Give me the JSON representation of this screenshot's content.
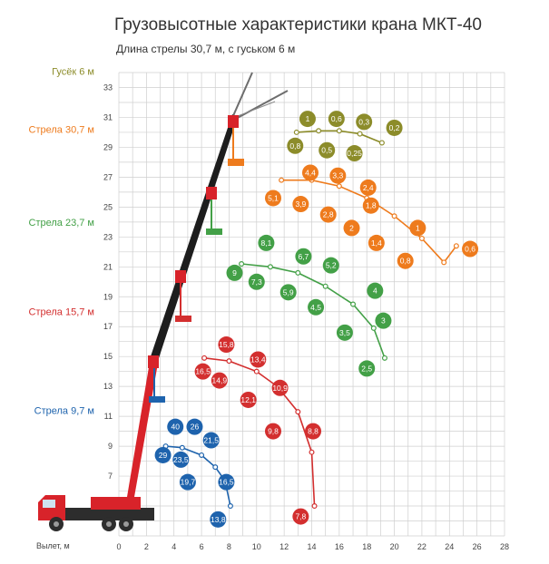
{
  "chart_data": {
    "type": "scatter",
    "title": "Грузовысотные характеристики крана МКТ-40",
    "subtitle": "Длина стрелы 30,7 м, с гуськом 6 м",
    "xlabel": "Вылет, м",
    "xlim": [
      0,
      28
    ],
    "ylim": [
      3,
      34
    ],
    "x_ticks": [
      "0",
      "2",
      "4",
      "6",
      "8",
      "10",
      "12",
      "14",
      "16",
      "18",
      "20",
      "22",
      "24",
      "26",
      "28"
    ],
    "y_ticks": [
      "33",
      "31",
      "29",
      "27",
      "25",
      "23",
      "21",
      "19",
      "17",
      "15",
      "13",
      "11",
      "9",
      "7",
      "5"
    ],
    "grid": true,
    "series": [
      {
        "name": "Гусёк 6 м",
        "color": "#8c8c2a",
        "label_y": 34.1,
        "curve": [
          [
            12.9,
            30.0
          ],
          [
            14.5,
            30.1
          ],
          [
            16.0,
            30.1
          ],
          [
            17.5,
            29.9
          ],
          [
            19.1,
            29.3
          ]
        ],
        "points": [
          {
            "x": 13.7,
            "y": 30.9,
            "label": "1"
          },
          {
            "x": 15.8,
            "y": 30.9,
            "label": "0,6"
          },
          {
            "x": 17.8,
            "y": 30.7,
            "label": "0,3"
          },
          {
            "x": 20.0,
            "y": 30.3,
            "label": "0,2"
          },
          {
            "x": 12.8,
            "y": 29.1,
            "label": "0,8"
          },
          {
            "x": 15.1,
            "y": 28.8,
            "label": "0,5"
          },
          {
            "x": 17.1,
            "y": 28.6,
            "label": "0,25"
          }
        ]
      },
      {
        "name": "Стрела 30,7 м",
        "color": "#ee7b1d",
        "label_y": 30.2,
        "curve": [
          [
            11.8,
            26.8
          ],
          [
            14.0,
            26.8
          ],
          [
            16.0,
            26.4
          ],
          [
            18.0,
            25.6
          ],
          [
            20.0,
            24.4
          ],
          [
            22.0,
            22.9
          ],
          [
            23.6,
            21.3
          ],
          [
            24.5,
            22.4
          ]
        ],
        "points": [
          {
            "x": 13.9,
            "y": 27.3,
            "label": "4,4"
          },
          {
            "x": 15.9,
            "y": 27.1,
            "label": "3,3"
          },
          {
            "x": 18.1,
            "y": 26.3,
            "label": "2,4"
          },
          {
            "x": 11.2,
            "y": 25.6,
            "label": "5,1"
          },
          {
            "x": 13.2,
            "y": 25.2,
            "label": "3,9"
          },
          {
            "x": 15.2,
            "y": 24.5,
            "label": "2,8"
          },
          {
            "x": 18.3,
            "y": 25.1,
            "label": "1,8"
          },
          {
            "x": 16.9,
            "y": 23.6,
            "label": "2"
          },
          {
            "x": 21.7,
            "y": 23.6,
            "label": "1"
          },
          {
            "x": 18.7,
            "y": 22.6,
            "label": "1,4"
          },
          {
            "x": 25.5,
            "y": 22.2,
            "label": "0,6"
          },
          {
            "x": 20.8,
            "y": 21.4,
            "label": "0,8"
          }
        ]
      },
      {
        "name": "Стрела 23,7 м",
        "color": "#43a047",
        "label_y": 24.0,
        "curve": [
          [
            8.9,
            21.2
          ],
          [
            11.0,
            21.0
          ],
          [
            13.0,
            20.6
          ],
          [
            15.0,
            19.7
          ],
          [
            17.0,
            18.5
          ],
          [
            18.5,
            16.9
          ],
          [
            19.3,
            14.9
          ]
        ],
        "points": [
          {
            "x": 10.7,
            "y": 22.6,
            "label": "8,1"
          },
          {
            "x": 13.4,
            "y": 21.7,
            "label": "6,7"
          },
          {
            "x": 15.4,
            "y": 21.1,
            "label": "5,2"
          },
          {
            "x": 8.4,
            "y": 20.6,
            "label": "9"
          },
          {
            "x": 10.0,
            "y": 20.0,
            "label": "7,3"
          },
          {
            "x": 12.3,
            "y": 19.3,
            "label": "5,9"
          },
          {
            "x": 18.6,
            "y": 19.4,
            "label": "4"
          },
          {
            "x": 14.3,
            "y": 18.3,
            "label": "4,5"
          },
          {
            "x": 19.2,
            "y": 17.4,
            "label": "3"
          },
          {
            "x": 16.4,
            "y": 16.6,
            "label": "3,5"
          },
          {
            "x": 18.0,
            "y": 14.2,
            "label": "2,5"
          }
        ]
      },
      {
        "name": "Стрела 15,7 м",
        "color": "#d32f2f",
        "label_y": 18.0,
        "curve": [
          [
            6.2,
            14.9
          ],
          [
            8.0,
            14.7
          ],
          [
            10.0,
            14.0
          ],
          [
            11.5,
            13.0
          ],
          [
            13.0,
            11.3
          ],
          [
            14.0,
            8.6
          ],
          [
            14.2,
            5.0
          ]
        ],
        "points": [
          {
            "x": 7.8,
            "y": 15.8,
            "label": "15,8"
          },
          {
            "x": 6.1,
            "y": 14.0,
            "label": "16,5"
          },
          {
            "x": 10.1,
            "y": 14.8,
            "label": "13,4"
          },
          {
            "x": 7.3,
            "y": 13.4,
            "label": "14,9"
          },
          {
            "x": 11.7,
            "y": 12.9,
            "label": "10,9"
          },
          {
            "x": 9.4,
            "y": 12.1,
            "label": "12,1"
          },
          {
            "x": 11.2,
            "y": 10.0,
            "label": "9,8"
          },
          {
            "x": 14.1,
            "y": 10.0,
            "label": "8,8"
          },
          {
            "x": 13.2,
            "y": 4.3,
            "label": "7,8"
          }
        ]
      },
      {
        "name": "Стрела 9,7 м",
        "color": "#1e63ad",
        "label_y": 11.4,
        "curve": [
          [
            3.4,
            9.0
          ],
          [
            4.6,
            8.9
          ],
          [
            6.0,
            8.4
          ],
          [
            7.0,
            7.6
          ],
          [
            7.7,
            6.7
          ],
          [
            8.1,
            5.0
          ]
        ],
        "points": [
          {
            "x": 4.1,
            "y": 10.3,
            "label": "40"
          },
          {
            "x": 5.5,
            "y": 10.3,
            "label": "26"
          },
          {
            "x": 6.7,
            "y": 9.4,
            "label": "21,5"
          },
          {
            "x": 3.2,
            "y": 8.4,
            "label": "29"
          },
          {
            "x": 4.5,
            "y": 8.1,
            "label": "23,5"
          },
          {
            "x": 7.8,
            "y": 6.6,
            "label": "16,5"
          },
          {
            "x": 5.0,
            "y": 6.6,
            "label": "19,7"
          },
          {
            "x": 7.2,
            "y": 4.1,
            "label": "13,8"
          }
        ]
      }
    ]
  },
  "colors": {
    "grid": "#cfcfcf",
    "crane_red": "#d8232a",
    "boom_black": "#1d1d1d",
    "boom_grey": "#6d6d6d",
    "truck_dark": "#2d2d2d"
  }
}
